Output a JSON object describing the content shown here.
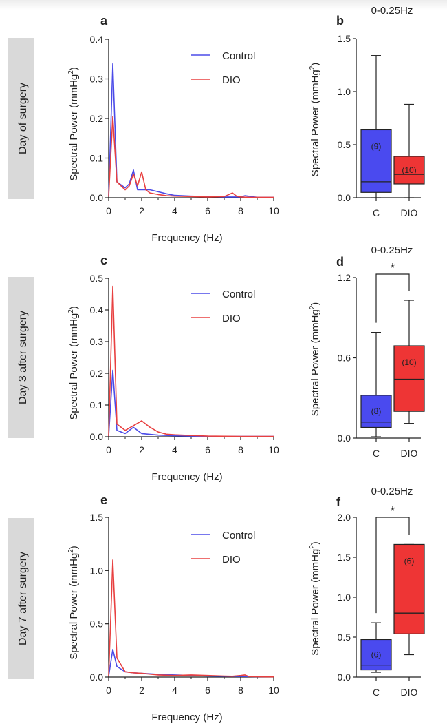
{
  "figure": {
    "colors": {
      "control": "#4b4be8",
      "dio": "#e84040",
      "control_fill": "#4a4aef",
      "dio_fill": "#ee3535",
      "row_label_bg": "#d9d9d9"
    }
  },
  "rows": [
    {
      "label": "Day of surgery"
    },
    {
      "label": "Day 3 after surgery"
    },
    {
      "label": "Day 7 after surgery"
    }
  ],
  "chart_data": [
    {
      "panel": "a",
      "type": "line",
      "xlabel": "Frequency (Hz)",
      "ylabel": "Spectral Power (mmHg²)",
      "xlim": [
        0,
        10
      ],
      "ylim": [
        0,
        0.4
      ],
      "xticks": [
        "0",
        "2",
        "4",
        "6",
        "8",
        "10"
      ],
      "yticks": [
        "0.0",
        "0.1",
        "0.2",
        "0.3",
        "0.4"
      ],
      "legend": "top-right",
      "series": [
        {
          "name": "Control",
          "color": "#4b4be8",
          "x": [
            0,
            0.25,
            0.5,
            1.0,
            1.25,
            1.5,
            1.75,
            2.0,
            2.5,
            3.0,
            3.5,
            4.0,
            5.0,
            6.0,
            7.0,
            7.5,
            8.0,
            8.25,
            9.0,
            10.0
          ],
          "y": [
            0.005,
            0.338,
            0.04,
            0.025,
            0.035,
            0.07,
            0.02,
            0.02,
            0.02,
            0.015,
            0.01,
            0.006,
            0.004,
            0.003,
            0.002,
            0.002,
            0.002,
            0.005,
            0.001,
            0.001
          ]
        },
        {
          "name": "DIO",
          "color": "#e84040",
          "x": [
            0,
            0.25,
            0.5,
            1.0,
            1.25,
            1.5,
            1.75,
            2.0,
            2.25,
            2.5,
            3.0,
            3.5,
            4.0,
            5.0,
            6.0,
            7.0,
            7.5,
            7.75,
            8.0,
            8.5,
            9.0,
            10.0
          ],
          "y": [
            0.003,
            0.205,
            0.04,
            0.02,
            0.03,
            0.06,
            0.03,
            0.065,
            0.02,
            0.012,
            0.008,
            0.005,
            0.004,
            0.003,
            0.002,
            0.003,
            0.012,
            0.004,
            0.002,
            0.001,
            0.001,
            0.001
          ]
        }
      ]
    },
    {
      "panel": "b",
      "type": "box",
      "title": "0-0.25Hz",
      "ylabel": "Spectral Power (mmHg²)",
      "ylim": [
        0,
        1.5
      ],
      "yticks": [
        "0.0",
        "0.5",
        "1.0",
        "1.5"
      ],
      "categories": [
        "C",
        "DIO"
      ],
      "boxes": [
        {
          "category": "C",
          "n": "(9)",
          "min": 0.0,
          "q1": 0.05,
          "median": 0.15,
          "q3": 0.64,
          "max": 1.34
        },
        {
          "category": "DIO",
          "n": "(10)",
          "min": 0.0,
          "q1": 0.13,
          "median": 0.22,
          "q3": 0.39,
          "max": 0.88
        }
      ],
      "significance": ""
    },
    {
      "panel": "c",
      "type": "line",
      "xlabel": "Frequency (Hz)",
      "ylabel": "Spectral Power (mmHg²)",
      "xlim": [
        0,
        10
      ],
      "ylim": [
        0,
        0.5
      ],
      "xticks": [
        "0",
        "2",
        "4",
        "6",
        "8",
        "10"
      ],
      "yticks": [
        "0.0",
        "0.1",
        "0.2",
        "0.3",
        "0.4",
        "0.5"
      ],
      "legend": "top-right",
      "series": [
        {
          "name": "Control",
          "color": "#4b4be8",
          "x": [
            0,
            0.25,
            0.5,
            1.0,
            1.5,
            2.0,
            3.0,
            4.0,
            5.0,
            6.0,
            8.0,
            10.0
          ],
          "y": [
            0.002,
            0.21,
            0.02,
            0.01,
            0.03,
            0.01,
            0.005,
            0.003,
            0.002,
            0.001,
            0.001,
            0.001
          ]
        },
        {
          "name": "DIO",
          "color": "#e84040",
          "x": [
            0,
            0.25,
            0.5,
            1.0,
            1.5,
            2.0,
            2.5,
            3.0,
            3.5,
            4.0,
            5.0,
            6.0,
            8.0,
            10.0
          ],
          "y": [
            0.002,
            0.475,
            0.04,
            0.02,
            0.035,
            0.05,
            0.03,
            0.015,
            0.008,
            0.006,
            0.004,
            0.002,
            0.001,
            0.001
          ]
        }
      ]
    },
    {
      "panel": "d",
      "type": "box",
      "title": "0-0.25Hz",
      "ylabel": "Spectral Power (mmHg²)",
      "ylim": [
        0,
        1.2
      ],
      "yticks": [
        "0.0",
        "0.6",
        "1.2"
      ],
      "categories": [
        "C",
        "DIO"
      ],
      "boxes": [
        {
          "category": "C",
          "n": "(8)",
          "min": 0.01,
          "q1": 0.08,
          "median": 0.12,
          "q3": 0.32,
          "max": 0.79
        },
        {
          "category": "DIO",
          "n": "(10)",
          "min": 0.11,
          "q1": 0.2,
          "median": 0.44,
          "q3": 0.69,
          "max": 1.03
        }
      ],
      "significance": "*"
    },
    {
      "panel": "e",
      "type": "line",
      "xlabel": "Frequency (Hz)",
      "ylabel": "Spectral Power (mmHg²)",
      "xlim": [
        0,
        10
      ],
      "ylim": [
        0,
        1.5
      ],
      "xticks": [
        "0",
        "2",
        "4",
        "6",
        "8",
        "10"
      ],
      "yticks": [
        "0.0",
        "0.5",
        "1.0",
        "1.5"
      ],
      "legend": "top-right",
      "series": [
        {
          "name": "Control",
          "color": "#4b4be8",
          "x": [
            0,
            0.25,
            0.5,
            1.0,
            1.5,
            2.0,
            3.0,
            4.0,
            5.0,
            6.0,
            7.0,
            8.0,
            9.0,
            10.0
          ],
          "y": [
            0.01,
            0.26,
            0.1,
            0.05,
            0.04,
            0.035,
            0.025,
            0.02,
            0.015,
            0.01,
            0.008,
            0.006,
            0.004,
            0.003
          ]
        },
        {
          "name": "DIO",
          "color": "#e84040",
          "x": [
            0,
            0.25,
            0.5,
            1.0,
            1.5,
            2.0,
            3.0,
            4.0,
            5.0,
            6.0,
            7.0,
            7.5,
            8.0,
            8.25,
            8.5,
            9.0,
            10.0
          ],
          "y": [
            0.01,
            1.1,
            0.18,
            0.05,
            0.04,
            0.035,
            0.02,
            0.015,
            0.02,
            0.015,
            0.01,
            0.008,
            0.015,
            0.02,
            0.005,
            0.003,
            0.002
          ]
        }
      ]
    },
    {
      "panel": "f",
      "type": "box",
      "title": "0-0.25Hz",
      "ylabel": "Spectral Power (mmHg²)",
      "ylim": [
        0,
        2.0
      ],
      "yticks": [
        "0.0",
        "0.5",
        "1.0",
        "1.5",
        "2.0"
      ],
      "categories": [
        "C",
        "DIO"
      ],
      "boxes": [
        {
          "category": "C",
          "n": "(6)",
          "min": 0.06,
          "q1": 0.09,
          "median": 0.15,
          "q3": 0.47,
          "max": 0.68
        },
        {
          "category": "DIO",
          "n": "(6)",
          "min": 0.28,
          "q1": 0.54,
          "median": 0.8,
          "q3": 1.66,
          "max": 1.66
        }
      ],
      "significance": "*"
    }
  ]
}
